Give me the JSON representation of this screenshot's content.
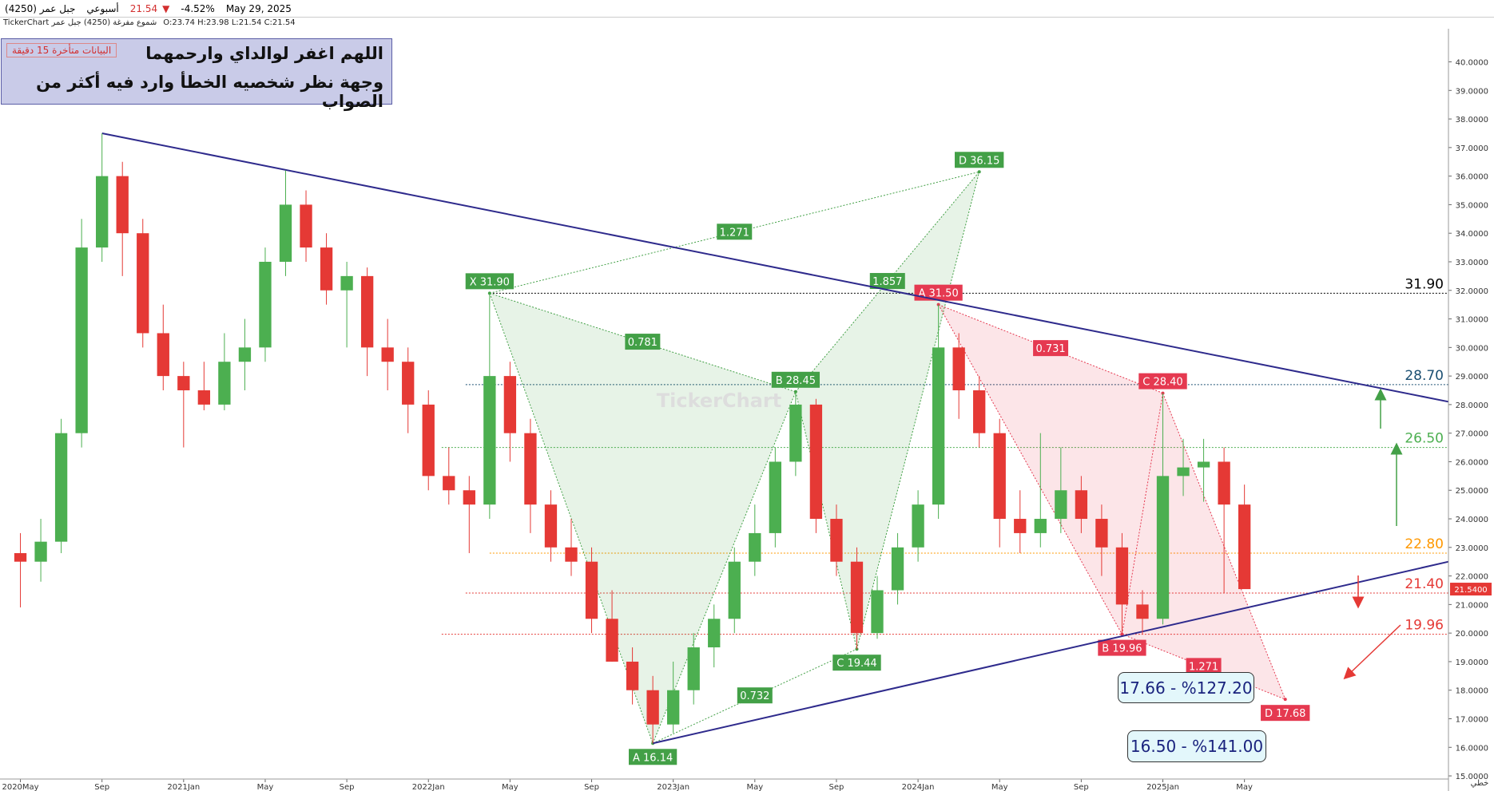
{
  "header": {
    "symbol": "جبل عمر (4250)",
    "period": "أسبوعي",
    "price": "21.54",
    "change": "-4.52%",
    "date": "May 29, 2025",
    "info": "TickerChart شموع مفرغة (4250) جبل عمر",
    "ohlc": "O:23.74  H:23.98  L:21.54  C:21.54"
  },
  "note": {
    "delay": "البيانات متأخرة 15 دقيقة",
    "line1": "اللهم اغفر لوالداي وارحمهما",
    "line2": "وجهة نظر شخصيه الخطأ وارد فيه أكثر من الصواب"
  },
  "watermark": "TickerChart",
  "footer": "خطي",
  "chart_data": {
    "type": "candlestick",
    "x": [
      "2020-05",
      "2020-06",
      "2020-07",
      "2020-08",
      "2020-09",
      "2020-10",
      "2020-11",
      "2020-12",
      "2021-01",
      "2021-02",
      "2021-03",
      "2021-04",
      "2021-05",
      "2021-06",
      "2021-07",
      "2021-08",
      "2021-09",
      "2021-10",
      "2021-11",
      "2021-12",
      "2022-01",
      "2022-02",
      "2022-03",
      "2022-04",
      "2022-05",
      "2022-06",
      "2022-07",
      "2022-08",
      "2022-09",
      "2022-10",
      "2022-11",
      "2022-12",
      "2023-01",
      "2023-02",
      "2023-03",
      "2023-04",
      "2023-05",
      "2023-06",
      "2023-07",
      "2023-08",
      "2023-09",
      "2023-10",
      "2023-11",
      "2023-12",
      "2024-01",
      "2024-02",
      "2024-03",
      "2024-04",
      "2024-05",
      "2024-06",
      "2024-07",
      "2024-08",
      "2024-09",
      "2024-10",
      "2024-11",
      "2024-12",
      "2025-01",
      "2025-02",
      "2025-03",
      "2025-04",
      "2025-05"
    ],
    "open": [
      22.8,
      22.5,
      23.2,
      27.0,
      33.5,
      36.0,
      34.0,
      30.5,
      29.0,
      28.5,
      28.0,
      29.5,
      30.0,
      33.0,
      35.0,
      33.5,
      32.0,
      32.5,
      30.0,
      29.5,
      28.0,
      25.5,
      25.0,
      24.5,
      29.0,
      27.0,
      24.5,
      23.0,
      22.5,
      20.5,
      19.0,
      18.0,
      16.8,
      18.0,
      19.5,
      20.5,
      22.5,
      23.5,
      26.0,
      28.0,
      24.0,
      22.5,
      20.0,
      21.5,
      23.0,
      24.5,
      30.0,
      28.5,
      27.0,
      24.0,
      23.5,
      24.0,
      25.0,
      24.0,
      23.0,
      21.0,
      20.5,
      25.5,
      25.8,
      26.0,
      24.5
    ],
    "high": [
      23.5,
      24.0,
      27.5,
      34.5,
      37.5,
      36.5,
      34.5,
      31.5,
      29.5,
      29.5,
      30.5,
      31.0,
      33.5,
      36.2,
      35.5,
      34.0,
      33.0,
      32.8,
      31.0,
      30.0,
      28.5,
      26.5,
      25.5,
      31.9,
      29.5,
      27.5,
      25.0,
      24.0,
      23.0,
      21.5,
      19.5,
      18.5,
      19.0,
      20.0,
      21.0,
      23.0,
      24.5,
      26.5,
      28.45,
      28.2,
      24.5,
      23.0,
      22.0,
      23.5,
      25.0,
      31.5,
      30.5,
      29.0,
      27.5,
      25.0,
      27.0,
      26.5,
      25.5,
      24.5,
      23.5,
      21.5,
      28.4,
      26.8,
      26.8,
      26.5,
      25.2
    ],
    "low": [
      20.9,
      21.8,
      22.8,
      26.5,
      33.0,
      32.5,
      30.0,
      28.5,
      26.5,
      27.8,
      27.8,
      28.5,
      29.5,
      32.5,
      33.0,
      31.5,
      30.0,
      29.0,
      28.5,
      27.0,
      25.0,
      24.5,
      22.8,
      24.0,
      26.0,
      23.5,
      22.5,
      22.0,
      20.0,
      19.0,
      17.5,
      16.14,
      16.5,
      17.5,
      18.8,
      20.0,
      22.0,
      23.0,
      25.5,
      23.5,
      22.0,
      19.44,
      19.8,
      21.0,
      22.5,
      24.0,
      27.5,
      26.5,
      23.0,
      22.8,
      23.0,
      23.5,
      23.5,
      22.0,
      20.0,
      19.96,
      20.3,
      24.8,
      24.6,
      21.4,
      21.54
    ],
    "close": [
      22.5,
      23.2,
      27.0,
      33.5,
      36.0,
      34.0,
      30.5,
      29.0,
      28.5,
      28.0,
      29.5,
      30.0,
      33.0,
      35.0,
      33.5,
      32.0,
      32.5,
      30.0,
      29.5,
      28.0,
      25.5,
      25.0,
      24.5,
      29.0,
      27.0,
      24.5,
      23.0,
      22.5,
      20.5,
      19.0,
      18.0,
      16.8,
      18.0,
      19.5,
      20.5,
      22.5,
      23.5,
      26.0,
      28.0,
      24.0,
      22.5,
      20.0,
      21.5,
      23.0,
      24.5,
      30.0,
      28.5,
      27.0,
      24.0,
      23.5,
      24.0,
      25.0,
      24.0,
      23.0,
      21.0,
      20.5,
      25.5,
      25.8,
      26.0,
      24.5,
      21.54
    ],
    "up_color": "#4caf50",
    "down_color": "#e53935",
    "xlim": [
      "2020-04",
      "2026-03"
    ],
    "xticks": [
      {
        "value": "2020-05",
        "label": "2020May"
      },
      {
        "value": "2020-09",
        "label": "Sep"
      },
      {
        "value": "2021-01",
        "label": "2021Jan"
      },
      {
        "value": "2021-05",
        "label": "May"
      },
      {
        "value": "2021-09",
        "label": "Sep"
      },
      {
        "value": "2022-01",
        "label": "2022Jan"
      },
      {
        "value": "2022-05",
        "label": "May"
      },
      {
        "value": "2022-09",
        "label": "Sep"
      },
      {
        "value": "2023-01",
        "label": "2023Jan"
      },
      {
        "value": "2023-05",
        "label": "May"
      },
      {
        "value": "2023-09",
        "label": "Sep"
      },
      {
        "value": "2024-01",
        "label": "2024Jan"
      },
      {
        "value": "2024-05",
        "label": "May"
      },
      {
        "value": "2024-09",
        "label": "Sep"
      },
      {
        "value": "2025-01",
        "label": "2025Jan"
      },
      {
        "value": "2025-05",
        "label": "May"
      }
    ],
    "ylim": [
      14.89,
      41.16
    ],
    "yticks": [
      {
        "value": 15,
        "label": "15.0000"
      },
      {
        "value": 16,
        "label": "16.0000"
      },
      {
        "value": 17,
        "label": "17.0000"
      },
      {
        "value": 18,
        "label": "18.0000"
      },
      {
        "value": 19,
        "label": "19.0000"
      },
      {
        "value": 20,
        "label": "20.0000"
      },
      {
        "value": 21,
        "label": "21.0000"
      },
      {
        "value": 22,
        "label": "22.0000"
      },
      {
        "value": 23,
        "label": "23.0000"
      },
      {
        "value": 24,
        "label": "24.0000"
      },
      {
        "value": 25,
        "label": "25.0000"
      },
      {
        "value": 26,
        "label": "26.0000"
      },
      {
        "value": 27,
        "label": "27.0000"
      },
      {
        "value": 28,
        "label": "28.0000"
      },
      {
        "value": 29,
        "label": "29.0000"
      },
      {
        "value": 30,
        "label": "30.0000"
      },
      {
        "value": 31,
        "label": "31.0000"
      },
      {
        "value": 32,
        "label": "32.0000"
      },
      {
        "value": 33,
        "label": "33.0000"
      },
      {
        "value": 34,
        "label": "34.0000"
      },
      {
        "value": 35,
        "label": "35.0000"
      },
      {
        "value": 36,
        "label": "36.0000"
      },
      {
        "value": 37,
        "label": "37.0000"
      },
      {
        "value": 38,
        "label": "38.0000"
      },
      {
        "value": 39,
        "label": "39.0000"
      },
      {
        "value": 40,
        "label": "40.0000"
      }
    ],
    "last_price": {
      "value": 21.54,
      "label": "21.5400"
    },
    "levels": [
      {
        "value": 31.9,
        "label": "31.90",
        "color": "#000000"
      },
      {
        "value": 28.7,
        "label": "28.70",
        "color": "#1b4f72"
      },
      {
        "value": 26.5,
        "label": "26.50",
        "color": "#4caf50"
      },
      {
        "value": 22.8,
        "label": "22.80",
        "color": "#ff9800"
      },
      {
        "value": 21.4,
        "label": "21.40",
        "color": "#e53935"
      },
      {
        "value": 19.96,
        "label": "19.96",
        "color": "#e53935"
      }
    ],
    "trendlines": [
      {
        "x": [
          "2020-09",
          "2026-03"
        ],
        "values": [
          37.5,
          28.1
        ],
        "color": "#2e2a8c"
      },
      {
        "x": [
          "2022-12",
          "2026-03"
        ],
        "values": [
          16.14,
          22.5
        ],
        "color": "#2e2a8c"
      }
    ],
    "patterns": [
      {
        "color": "#43a047",
        "points": [
          {
            "x": "2022-04",
            "value": 31.9,
            "label": "X 31.90"
          },
          {
            "x": "2022-12",
            "value": 16.14,
            "label": "A 16.14"
          },
          {
            "x": "2023-07",
            "value": 28.45,
            "label": "B 28.45"
          },
          {
            "x": "2023-10",
            "value": 19.44,
            "label": "C 19.44"
          },
          {
            "x": "2024-04",
            "value": 36.15,
            "label": "D 36.15"
          }
        ],
        "ratios": [
          "0.781",
          "0.732",
          "1.857",
          "1.271"
        ]
      },
      {
        "color": "#e53950",
        "points": [
          {
            "x": "2024-02",
            "value": 31.5,
            "label": "A 31.50"
          },
          {
            "x": "2024-11",
            "value": 19.96,
            "label": "B 19.96"
          },
          {
            "x": "2025-01",
            "value": 28.4,
            "label": "C 28.40"
          },
          {
            "x": "2025-07",
            "value": 17.68,
            "label": "D 17.68"
          }
        ],
        "ratios": [
          "0.731",
          "1.271"
        ]
      }
    ],
    "targets": [
      "17.66 - %127.20",
      "16.50 - %141.00"
    ]
  }
}
